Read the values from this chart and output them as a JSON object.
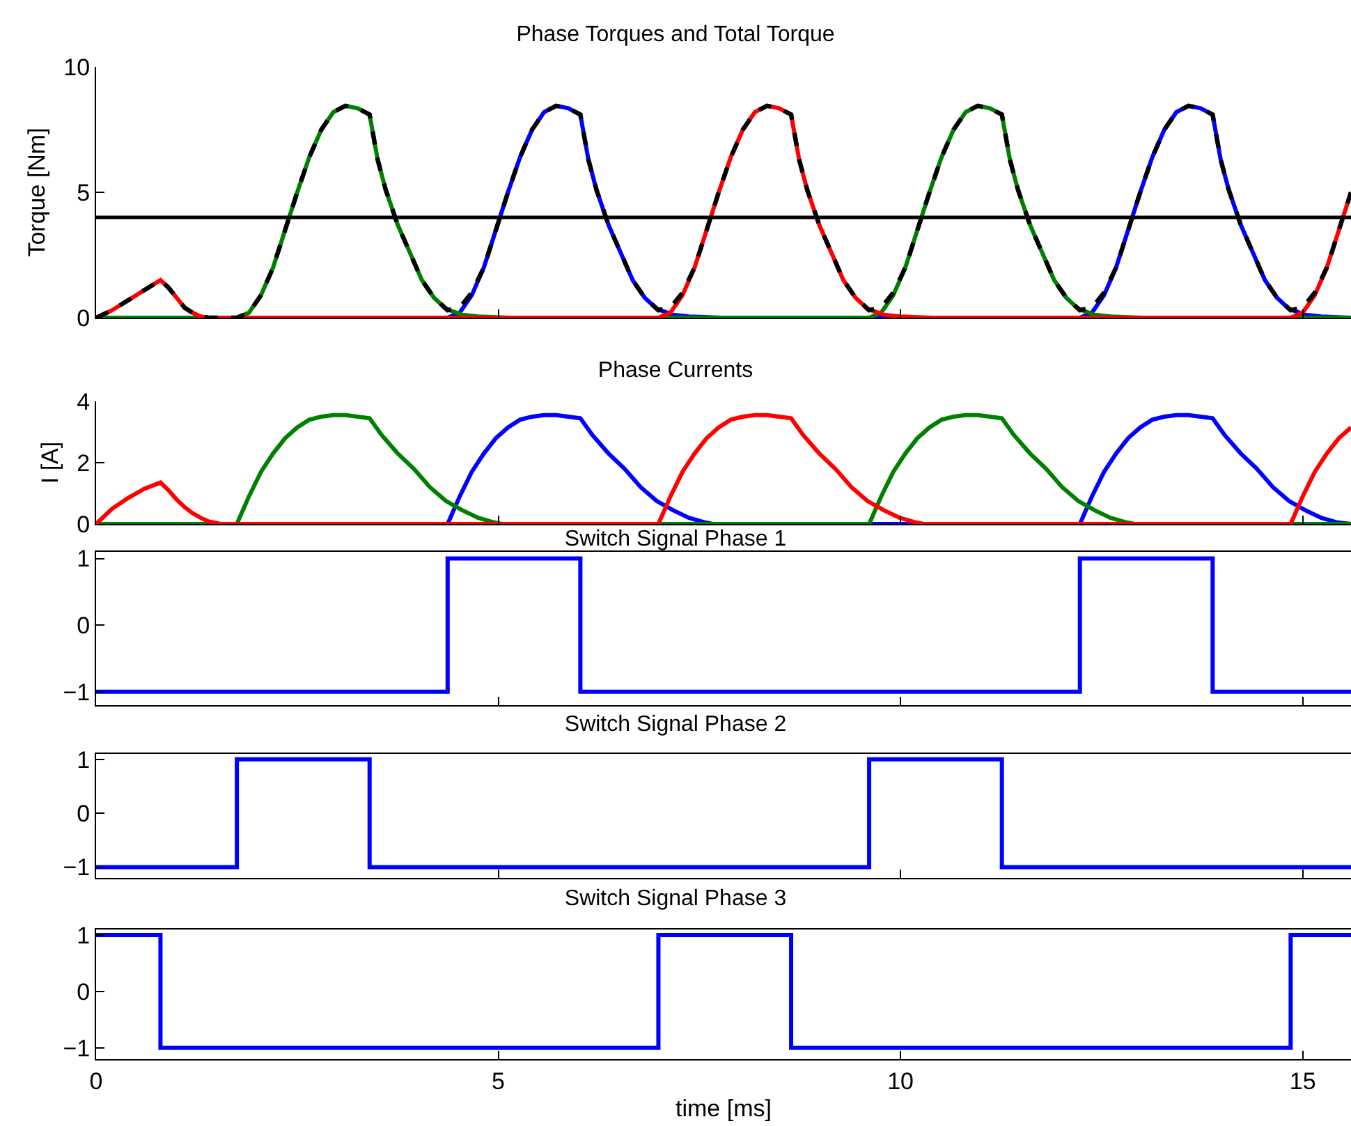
{
  "chart_data": [
    {
      "type": "line",
      "title": "Phase Torques and Total Torque",
      "ylabel": "Torque [Nm]",
      "xlim": [
        0,
        15.6
      ],
      "xticks": [
        0,
        5,
        10,
        15
      ],
      "ylim": [
        0,
        10
      ],
      "yticks": [
        0,
        5,
        10
      ],
      "tick_labels": "y",
      "grid": false,
      "ref_lines": [
        {
          "axis": "y",
          "value": 4,
          "color": "#000000"
        }
      ],
      "series": [
        {
          "color": "#0000ff",
          "x": [
            0,
            4.37,
            4.52,
            4.67,
            4.82,
            4.97,
            5.12,
            5.27,
            5.42,
            5.57,
            5.72,
            5.87,
            6.02,
            6.12,
            6.22,
            6.37,
            6.52,
            6.67,
            6.82,
            6.97,
            7.17,
            7.37,
            7.77,
            12.23,
            12.38,
            12.53,
            12.68,
            12.83,
            12.98,
            13.13,
            13.28,
            13.43,
            13.58,
            13.73,
            13.88,
            13.98,
            14.08,
            14.23,
            14.38,
            14.53,
            14.68,
            14.83,
            15.03,
            15.23,
            15.6
          ],
          "values": [
            0,
            0,
            0.2,
            0.9,
            2.0,
            3.5,
            5.0,
            6.4,
            7.5,
            8.2,
            8.45,
            8.35,
            8.1,
            6.3,
            5.1,
            3.7,
            2.6,
            1.5,
            0.8,
            0.35,
            0.12,
            0.05,
            0,
            0,
            0.2,
            0.9,
            2.0,
            3.5,
            5.0,
            6.4,
            7.5,
            8.2,
            8.45,
            8.35,
            8.1,
            6.3,
            5.1,
            3.7,
            2.6,
            1.5,
            0.8,
            0.35,
            0.12,
            0.05,
            0
          ]
        },
        {
          "color": "#008000",
          "x": [
            0,
            1.75,
            1.9,
            2.05,
            2.2,
            2.35,
            2.5,
            2.65,
            2.8,
            2.95,
            3.1,
            3.25,
            3.4,
            3.5,
            3.6,
            3.75,
            3.9,
            4.05,
            4.2,
            4.35,
            4.55,
            4.75,
            5.15,
            9.61,
            9.76,
            9.91,
            10.06,
            10.21,
            10.36,
            10.51,
            10.66,
            10.81,
            10.96,
            11.11,
            11.26,
            11.36,
            11.46,
            11.61,
            11.76,
            11.91,
            12.06,
            12.21,
            12.41,
            12.61,
            13.01,
            15.6
          ],
          "values": [
            0,
            0,
            0.2,
            0.9,
            2.0,
            3.5,
            5.0,
            6.4,
            7.5,
            8.2,
            8.45,
            8.35,
            8.1,
            6.3,
            5.1,
            3.7,
            2.6,
            1.5,
            0.8,
            0.35,
            0.12,
            0.05,
            0,
            0,
            0.2,
            0.9,
            2.0,
            3.5,
            5.0,
            6.4,
            7.5,
            8.2,
            8.45,
            8.35,
            8.1,
            6.3,
            5.1,
            3.7,
            2.6,
            1.5,
            0.8,
            0.35,
            0.12,
            0.05,
            0,
            0
          ]
        },
        {
          "color": "#ff0000",
          "x": [
            0,
            0.2,
            0.4,
            0.6,
            0.8,
            0.9,
            1.0,
            1.1,
            1.2,
            1.3,
            1.4,
            6.99,
            7.14,
            7.29,
            7.44,
            7.59,
            7.74,
            7.89,
            8.04,
            8.19,
            8.34,
            8.49,
            8.64,
            8.74,
            8.84,
            8.99,
            9.14,
            9.29,
            9.44,
            9.59,
            9.79,
            9.99,
            10.39,
            14.85,
            15.0,
            15.15,
            15.3,
            15.45,
            15.6
          ],
          "values": [
            0,
            0.3,
            0.7,
            1.1,
            1.5,
            1.2,
            0.8,
            0.4,
            0.2,
            0.05,
            0,
            0,
            0.2,
            0.9,
            2.0,
            3.5,
            5.0,
            6.4,
            7.5,
            8.2,
            8.45,
            8.35,
            8.1,
            6.3,
            5.1,
            3.7,
            2.6,
            1.5,
            0.8,
            0.35,
            0.12,
            0.05,
            0,
            0,
            0.2,
            0.9,
            2.0,
            3.5,
            5.0
          ]
        },
        {
          "color": "#000000",
          "line_style": "dashed",
          "x": [
            0,
            0.2,
            0.4,
            0.6,
            0.8,
            0.9,
            1.0,
            1.1,
            1.2,
            1.3,
            1.4,
            1.75,
            1.9,
            2.05,
            2.2,
            2.35,
            2.5,
            2.65,
            2.8,
            2.95,
            3.1,
            3.25,
            3.4,
            3.5,
            3.6,
            3.75,
            3.9,
            4.05,
            4.2,
            4.37,
            4.52,
            4.67,
            4.82,
            4.97,
            5.12,
            5.27,
            5.42,
            5.57,
            5.72,
            5.87,
            6.02,
            6.12,
            6.22,
            6.37,
            6.52,
            6.67,
            6.82,
            6.99,
            7.14,
            7.29,
            7.44,
            7.59,
            7.74,
            7.89,
            8.04,
            8.19,
            8.34,
            8.49,
            8.64,
            8.74,
            8.84,
            8.99,
            9.14,
            9.29,
            9.44,
            9.61,
            9.76,
            9.91,
            10.06,
            10.21,
            10.36,
            10.51,
            10.66,
            10.81,
            10.96,
            11.11,
            11.26,
            11.36,
            11.46,
            11.61,
            11.76,
            11.91,
            12.06,
            12.23,
            12.38,
            12.53,
            12.68,
            12.83,
            12.98,
            13.13,
            13.28,
            13.43,
            13.58,
            13.73,
            13.88,
            13.98,
            14.08,
            14.23,
            14.38,
            14.53,
            14.68,
            14.85,
            15.0,
            15.15,
            15.3,
            15.45,
            15.6
          ],
          "values": [
            0,
            0.3,
            0.7,
            1.1,
            1.5,
            1.2,
            0.8,
            0.4,
            0.2,
            0.05,
            0,
            0,
            0.2,
            0.9,
            2.0,
            3.5,
            5.0,
            6.4,
            7.5,
            8.2,
            8.45,
            8.35,
            8.1,
            6.3,
            5.1,
            3.7,
            2.6,
            1.5,
            0.8,
            0.3,
            0.4,
            1.0,
            2.0,
            3.5,
            5.0,
            6.4,
            7.5,
            8.2,
            8.45,
            8.35,
            8.1,
            6.3,
            5.1,
            3.7,
            2.6,
            1.5,
            0.8,
            0.3,
            0.4,
            1.0,
            2.0,
            3.5,
            5.0,
            6.4,
            7.5,
            8.2,
            8.45,
            8.35,
            8.1,
            6.3,
            5.1,
            3.7,
            2.6,
            1.5,
            0.8,
            0.3,
            0.4,
            1.0,
            2.0,
            3.5,
            5.0,
            6.4,
            7.5,
            8.2,
            8.45,
            8.35,
            8.1,
            6.3,
            5.1,
            3.7,
            2.6,
            1.5,
            0.8,
            0.3,
            0.4,
            1.0,
            2.0,
            3.5,
            5.0,
            6.4,
            7.5,
            8.2,
            8.45,
            8.35,
            8.1,
            6.3,
            5.1,
            3.7,
            2.6,
            1.5,
            0.8,
            0.3,
            0.4,
            1.0,
            2.0,
            3.5,
            5.0
          ]
        }
      ]
    },
    {
      "type": "line",
      "title": "Phase Currents",
      "ylabel": "I [A]",
      "xlim": [
        0,
        15.6
      ],
      "xticks": [
        0,
        5,
        10,
        15
      ],
      "ylim": [
        0,
        4
      ],
      "yticks": [
        0,
        2,
        4
      ],
      "tick_labels": "y",
      "grid": false,
      "series": [
        {
          "color": "#0000ff",
          "x": [
            0,
            4.37,
            4.52,
            4.67,
            4.82,
            4.97,
            5.12,
            5.27,
            5.42,
            5.57,
            5.72,
            5.87,
            6.02,
            6.17,
            6.37,
            6.57,
            6.77,
            6.97,
            7.17,
            7.37,
            7.57,
            7.67,
            12.23,
            12.38,
            12.53,
            12.68,
            12.83,
            12.98,
            13.13,
            13.28,
            13.43,
            13.58,
            13.73,
            13.88,
            14.03,
            14.23,
            14.43,
            14.63,
            14.83,
            15.03,
            15.23,
            15.43,
            15.6
          ],
          "values": [
            0,
            0,
            0.9,
            1.7,
            2.3,
            2.8,
            3.15,
            3.4,
            3.5,
            3.55,
            3.55,
            3.5,
            3.45,
            2.9,
            2.3,
            1.8,
            1.2,
            0.75,
            0.45,
            0.2,
            0.05,
            0,
            0,
            0.9,
            1.7,
            2.3,
            2.8,
            3.15,
            3.4,
            3.5,
            3.55,
            3.55,
            3.5,
            3.45,
            2.9,
            2.3,
            1.8,
            1.2,
            0.75,
            0.45,
            0.2,
            0.05,
            0
          ]
        },
        {
          "color": "#008000",
          "x": [
            0,
            1.75,
            1.9,
            2.05,
            2.2,
            2.35,
            2.5,
            2.65,
            2.8,
            2.95,
            3.1,
            3.25,
            3.4,
            3.55,
            3.75,
            3.95,
            4.15,
            4.35,
            4.55,
            4.75,
            4.95,
            5.05,
            9.61,
            9.76,
            9.91,
            10.06,
            10.21,
            10.36,
            10.51,
            10.66,
            10.81,
            10.96,
            11.11,
            11.26,
            11.41,
            11.61,
            11.81,
            12.01,
            12.21,
            12.41,
            12.61,
            12.81,
            12.91,
            15.6
          ],
          "values": [
            0,
            0,
            0.9,
            1.7,
            2.3,
            2.8,
            3.15,
            3.4,
            3.5,
            3.55,
            3.55,
            3.5,
            3.45,
            2.9,
            2.3,
            1.8,
            1.2,
            0.75,
            0.45,
            0.2,
            0.05,
            0,
            0,
            0.9,
            1.7,
            2.3,
            2.8,
            3.15,
            3.4,
            3.5,
            3.55,
            3.55,
            3.5,
            3.45,
            2.9,
            2.3,
            1.8,
            1.2,
            0.75,
            0.45,
            0.2,
            0.05,
            0,
            0
          ]
        },
        {
          "color": "#ff0000",
          "x": [
            0,
            0.2,
            0.4,
            0.6,
            0.8,
            0.9,
            1.0,
            1.1,
            1.2,
            1.3,
            1.4,
            1.55,
            6.99,
            7.14,
            7.29,
            7.44,
            7.59,
            7.74,
            7.89,
            8.04,
            8.19,
            8.34,
            8.49,
            8.64,
            8.79,
            8.99,
            9.19,
            9.39,
            9.59,
            9.79,
            9.99,
            10.19,
            10.29,
            14.85,
            15.0,
            15.15,
            15.3,
            15.45,
            15.6
          ],
          "values": [
            0,
            0.5,
            0.85,
            1.15,
            1.35,
            1.1,
            0.8,
            0.55,
            0.35,
            0.2,
            0.08,
            0,
            0,
            0.9,
            1.7,
            2.3,
            2.8,
            3.15,
            3.4,
            3.5,
            3.55,
            3.55,
            3.5,
            3.45,
            2.9,
            2.3,
            1.8,
            1.2,
            0.75,
            0.45,
            0.2,
            0.05,
            0,
            0,
            0.9,
            1.7,
            2.3,
            2.8,
            3.15
          ]
        }
      ]
    },
    {
      "type": "step",
      "title": "Switch Signal Phase 1",
      "xlim": [
        0,
        15.6
      ],
      "xticks": [
        0,
        5,
        10,
        15
      ],
      "ylim": [
        -1.2,
        1.1
      ],
      "yticks": [
        -1,
        0,
        1
      ],
      "tick_labels": "y",
      "grid": false,
      "series": [
        {
          "color": "#0000ff",
          "x": [
            0,
            4.37,
            6.02,
            12.23,
            13.88,
            15.6
          ],
          "values": [
            -1,
            1,
            -1,
            1,
            -1,
            -1
          ]
        }
      ]
    },
    {
      "type": "step",
      "title": "Switch Signal Phase 2",
      "xlim": [
        0,
        15.6
      ],
      "xticks": [
        0,
        5,
        10,
        15
      ],
      "ylim": [
        -1.2,
        1.1
      ],
      "yticks": [
        -1,
        0,
        1
      ],
      "tick_labels": "y",
      "grid": false,
      "series": [
        {
          "color": "#0000ff",
          "x": [
            0,
            1.75,
            3.4,
            9.61,
            11.26,
            15.6
          ],
          "values": [
            -1,
            1,
            -1,
            1,
            -1,
            -1
          ]
        }
      ]
    },
    {
      "type": "step",
      "title": "Switch Signal Phase 3",
      "xlabel": "time [ms]",
      "xlim": [
        0,
        15.6
      ],
      "xticks": [
        0,
        5,
        10,
        15
      ],
      "ylim": [
        -1.2,
        1.1
      ],
      "yticks": [
        -1,
        0,
        1
      ],
      "grid": false,
      "series": [
        {
          "color": "#0000ff",
          "x": [
            0,
            0.8,
            6.99,
            8.64,
            14.85,
            15.6
          ],
          "values": [
            1,
            -1,
            1,
            -1,
            1,
            1
          ]
        }
      ]
    }
  ]
}
